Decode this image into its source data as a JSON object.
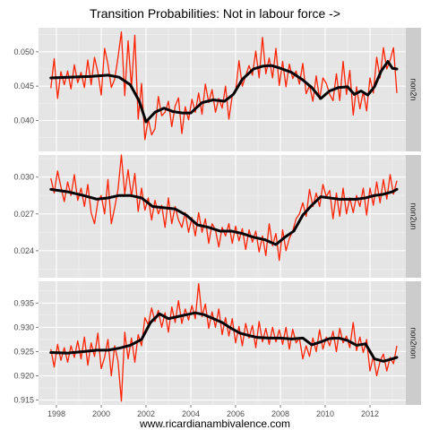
{
  "colors": {
    "panel_bg": "#e5e5e5",
    "grid_major": "#ffffff",
    "grid_minor": "#f2f2f2",
    "strip_bg": "#cccccc",
    "raw_series": "#ff2200",
    "smooth_series": "#000000"
  },
  "chart_data": {
    "type": "line",
    "title": "Transition Probabilities: Not in labour force ->",
    "xlabel": "www.ricardianambivalence.com",
    "ylabel": "",
    "x_range": [
      1997.2,
      2013.6
    ],
    "x_ticks": [
      1998,
      2000,
      2002,
      2004,
      2006,
      2008,
      2010,
      2012
    ],
    "x_tick_labels": [
      "1998",
      "2000",
      "2002",
      "2004",
      "2006",
      "2008",
      "2010",
      "2012"
    ],
    "grid": true,
    "legend": "none",
    "facets": [
      {
        "strip": "non2n",
        "ylim": [
          0.0355,
          0.0535
        ],
        "y_ticks": [
          0.04,
          0.045,
          0.05
        ],
        "y_tick_labels": [
          "0.040",
          "0.045",
          "0.050"
        ],
        "smooth": {
          "x": [
            1997.75,
            1998.5,
            1999.5,
            2000.3,
            2000.8,
            2001.3,
            2001.7,
            2002.0,
            2002.4,
            2002.8,
            2003.2,
            2003.6,
            2004.0,
            2004.5,
            2005.0,
            2005.5,
            2005.9,
            2006.3,
            2006.8,
            2007.2,
            2007.6,
            2008.0,
            2008.5,
            2009.0,
            2009.4,
            2009.8,
            2010.2,
            2010.6,
            2011.0,
            2011.3,
            2011.6,
            2011.9,
            2012.2,
            2012.5,
            2012.8,
            2013.0,
            2013.2
          ],
          "y": [
            0.0462,
            0.0463,
            0.0464,
            0.0466,
            0.0463,
            0.0452,
            0.0428,
            0.0398,
            0.0412,
            0.0418,
            0.0413,
            0.0411,
            0.0411,
            0.0426,
            0.043,
            0.0428,
            0.0438,
            0.046,
            0.0475,
            0.0479,
            0.048,
            0.0476,
            0.047,
            0.0459,
            0.0448,
            0.0432,
            0.0443,
            0.0448,
            0.0449,
            0.0438,
            0.0443,
            0.0437,
            0.0449,
            0.0472,
            0.0486,
            0.0476,
            0.0475
          ]
        },
        "raw": {
          "x": [
            1997.75,
            1997.9,
            1998.05,
            1998.2,
            1998.35,
            1998.5,
            1998.65,
            1998.8,
            1998.95,
            1999.1,
            1999.25,
            1999.4,
            1999.55,
            1999.7,
            1999.85,
            2000.0,
            2000.15,
            2000.3,
            2000.45,
            2000.6,
            2000.75,
            2000.9,
            2001.05,
            2001.2,
            2001.35,
            2001.5,
            2001.65,
            2001.8,
            2001.95,
            2002.1,
            2002.25,
            2002.4,
            2002.55,
            2002.7,
            2002.85,
            2003.0,
            2003.15,
            2003.3,
            2003.45,
            2003.6,
            2003.75,
            2003.9,
            2004.05,
            2004.2,
            2004.35,
            2004.5,
            2004.65,
            2004.8,
            2004.95,
            2005.1,
            2005.25,
            2005.4,
            2005.55,
            2005.7,
            2005.85,
            2006.0,
            2006.15,
            2006.3,
            2006.45,
            2006.6,
            2006.75,
            2006.9,
            2007.05,
            2007.2,
            2007.35,
            2007.5,
            2007.65,
            2007.8,
            2007.95,
            2008.1,
            2008.25,
            2008.4,
            2008.55,
            2008.7,
            2008.85,
            2009.0,
            2009.15,
            2009.3,
            2009.45,
            2009.6,
            2009.75,
            2009.9,
            2010.05,
            2010.2,
            2010.35,
            2010.5,
            2010.65,
            2010.8,
            2010.95,
            2011.1,
            2011.25,
            2011.4,
            2011.55,
            2011.7,
            2011.85,
            2012.0,
            2012.15,
            2012.3,
            2012.45,
            2012.6,
            2012.75,
            2012.9,
            2013.05,
            2013.2
          ],
          "y": [
            0.0447,
            0.049,
            0.0432,
            0.0471,
            0.0452,
            0.0472,
            0.0446,
            0.0481,
            0.0455,
            0.047,
            0.0448,
            0.0488,
            0.0452,
            0.0492,
            0.047,
            0.0437,
            0.0505,
            0.0482,
            0.0448,
            0.046,
            0.0492,
            0.0529,
            0.0436,
            0.0516,
            0.0448,
            0.0524,
            0.0402,
            0.0454,
            0.0372,
            0.0402,
            0.0379,
            0.0388,
            0.0435,
            0.0407,
            0.0412,
            0.0428,
            0.0391,
            0.0421,
            0.0433,
            0.0381,
            0.042,
            0.0401,
            0.0431,
            0.0412,
            0.044,
            0.0409,
            0.0453,
            0.0426,
            0.0445,
            0.0412,
            0.0432,
            0.0418,
            0.045,
            0.0402,
            0.0436,
            0.0442,
            0.0487,
            0.045,
            0.0465,
            0.048,
            0.0466,
            0.0501,
            0.0462,
            0.0521,
            0.0468,
            0.0491,
            0.0462,
            0.0505,
            0.0451,
            0.0486,
            0.0449,
            0.0482,
            0.0461,
            0.0472,
            0.0453,
            0.0483,
            0.0439,
            0.0451,
            0.0428,
            0.0465,
            0.0431,
            0.0462,
            0.0454,
            0.0438,
            0.0429,
            0.0468,
            0.0429,
            0.0486,
            0.0438,
            0.0473,
            0.0408,
            0.0449,
            0.0417,
            0.0442,
            0.0414,
            0.0462,
            0.044,
            0.0492,
            0.0462,
            0.0506,
            0.0475,
            0.0488,
            0.0506,
            0.044
          ]
        }
      },
      {
        "strip": "non2un",
        "ylim": [
          0.0218,
          0.0318
        ],
        "y_ticks": [
          0.024,
          0.027,
          0.03
        ],
        "y_tick_labels": [
          "0.024",
          "0.027",
          "0.030"
        ],
        "smooth": {
          "x": [
            1997.75,
            1998.5,
            1999.2,
            1999.8,
            2000.3,
            2000.8,
            2001.3,
            2001.8,
            2002.3,
            2002.8,
            2003.3,
            2003.8,
            2004.3,
            2004.8,
            2005.3,
            2005.8,
            2006.3,
            2006.8,
            2007.3,
            2007.8,
            2008.2,
            2008.6,
            2009.0,
            2009.4,
            2009.8,
            2010.2,
            2010.6,
            2011.0,
            2011.4,
            2011.8,
            2012.2,
            2012.6,
            2013.0,
            2013.2
          ],
          "y": [
            0.029,
            0.0288,
            0.0285,
            0.0282,
            0.0283,
            0.0285,
            0.0285,
            0.0283,
            0.0276,
            0.0275,
            0.0274,
            0.0269,
            0.0261,
            0.0259,
            0.0256,
            0.0256,
            0.0254,
            0.0251,
            0.0249,
            0.0245,
            0.0251,
            0.0256,
            0.0269,
            0.0277,
            0.0284,
            0.0283,
            0.0282,
            0.0282,
            0.0282,
            0.0283,
            0.0285,
            0.0286,
            0.0288,
            0.029
          ]
        },
        "raw": {
          "x": [
            1997.75,
            1997.9,
            1998.05,
            1998.2,
            1998.35,
            1998.5,
            1998.65,
            1998.8,
            1998.95,
            1999.1,
            1999.25,
            1999.4,
            1999.55,
            1999.7,
            1999.85,
            2000.0,
            2000.15,
            2000.3,
            2000.45,
            2000.6,
            2000.75,
            2000.9,
            2001.05,
            2001.2,
            2001.35,
            2001.5,
            2001.65,
            2001.8,
            2001.95,
            2002.1,
            2002.25,
            2002.4,
            2002.55,
            2002.7,
            2002.85,
            2003.0,
            2003.15,
            2003.3,
            2003.45,
            2003.6,
            2003.75,
            2003.9,
            2004.05,
            2004.2,
            2004.35,
            2004.5,
            2004.65,
            2004.8,
            2004.95,
            2005.1,
            2005.25,
            2005.4,
            2005.55,
            2005.7,
            2005.85,
            2006.0,
            2006.15,
            2006.3,
            2006.45,
            2006.6,
            2006.75,
            2006.9,
            2007.05,
            2007.2,
            2007.35,
            2007.5,
            2007.65,
            2007.8,
            2007.95,
            2008.1,
            2008.25,
            2008.4,
            2008.55,
            2008.7,
            2008.85,
            2009.0,
            2009.15,
            2009.3,
            2009.45,
            2009.6,
            2009.75,
            2009.9,
            2010.05,
            2010.2,
            2010.35,
            2010.5,
            2010.65,
            2010.8,
            2010.95,
            2011.1,
            2011.25,
            2011.4,
            2011.55,
            2011.7,
            2011.85,
            2012.0,
            2012.15,
            2012.3,
            2012.45,
            2012.6,
            2012.75,
            2012.9,
            2013.05,
            2013.2
          ],
          "y": [
            0.0299,
            0.0287,
            0.0305,
            0.0292,
            0.028,
            0.0296,
            0.0285,
            0.0302,
            0.0281,
            0.0291,
            0.0276,
            0.0294,
            0.0271,
            0.0262,
            0.028,
            0.0285,
            0.027,
            0.0298,
            0.0262,
            0.0275,
            0.029,
            0.0318,
            0.0286,
            0.0306,
            0.0284,
            0.0303,
            0.0272,
            0.0291,
            0.0273,
            0.0283,
            0.0265,
            0.0281,
            0.027,
            0.0277,
            0.0259,
            0.0283,
            0.0262,
            0.0276,
            0.0265,
            0.0259,
            0.0271,
            0.0255,
            0.0267,
            0.0252,
            0.0271,
            0.0255,
            0.0266,
            0.0246,
            0.0262,
            0.0257,
            0.0243,
            0.0259,
            0.0252,
            0.0262,
            0.0246,
            0.026,
            0.0248,
            0.0258,
            0.0241,
            0.0257,
            0.0247,
            0.0256,
            0.0239,
            0.0252,
            0.0236,
            0.0262,
            0.0244,
            0.0254,
            0.0232,
            0.0257,
            0.024,
            0.025,
            0.0256,
            0.0266,
            0.027,
            0.0279,
            0.0268,
            0.029,
            0.0276,
            0.0287,
            0.0276,
            0.0294,
            0.0284,
            0.0289,
            0.0266,
            0.0287,
            0.0268,
            0.0291,
            0.027,
            0.0283,
            0.0271,
            0.0285,
            0.0276,
            0.0291,
            0.0269,
            0.0291,
            0.0277,
            0.0296,
            0.0279,
            0.0298,
            0.0282,
            0.0302,
            0.0286,
            0.0297
          ]
        }
      },
      {
        "strip": "non2non",
        "ylim": [
          0.914,
          0.9395
        ],
        "y_ticks": [
          0.915,
          0.92,
          0.925,
          0.93,
          0.935
        ],
        "y_tick_labels": [
          "0.915",
          "0.920",
          "0.925",
          "0.930",
          "0.935"
        ],
        "smooth": {
          "x": [
            1997.75,
            1998.5,
            1999.2,
            1999.8,
            2000.3,
            2000.8,
            2001.3,
            2001.8,
            2002.2,
            2002.6,
            2003.0,
            2003.4,
            2003.8,
            2004.2,
            2004.6,
            2005.0,
            2005.4,
            2005.8,
            2006.2,
            2006.6,
            2007.0,
            2007.5,
            2008.0,
            2008.5,
            2009.0,
            2009.4,
            2009.8,
            2010.2,
            2010.6,
            2011.0,
            2011.4,
            2011.8,
            2012.2,
            2012.6,
            2013.0,
            2013.2
          ],
          "y": [
            0.9248,
            0.9247,
            0.925,
            0.9253,
            0.9253,
            0.9257,
            0.9263,
            0.9275,
            0.931,
            0.9328,
            0.9318,
            0.9322,
            0.9326,
            0.933,
            0.9326,
            0.9318,
            0.931,
            0.9298,
            0.9288,
            0.9283,
            0.9279,
            0.9278,
            0.9278,
            0.9276,
            0.9278,
            0.9264,
            0.927,
            0.9277,
            0.9278,
            0.9273,
            0.9263,
            0.9266,
            0.9235,
            0.923,
            0.9235,
            0.9238
          ]
        },
        "raw": {
          "x": [
            1997.75,
            1997.9,
            1998.05,
            1998.2,
            1998.35,
            1998.5,
            1998.65,
            1998.8,
            1998.95,
            1999.1,
            1999.25,
            1999.4,
            1999.55,
            1999.7,
            1999.85,
            2000.0,
            2000.15,
            2000.3,
            2000.45,
            2000.6,
            2000.75,
            2000.9,
            2001.05,
            2001.2,
            2001.35,
            2001.5,
            2001.65,
            2001.8,
            2001.95,
            2002.1,
            2002.25,
            2002.4,
            2002.55,
            2002.7,
            2002.85,
            2003.0,
            2003.15,
            2003.3,
            2003.45,
            2003.6,
            2003.75,
            2003.9,
            2004.05,
            2004.2,
            2004.35,
            2004.5,
            2004.65,
            2004.8,
            2004.95,
            2005.1,
            2005.25,
            2005.4,
            2005.55,
            2005.7,
            2005.85,
            2006.0,
            2006.15,
            2006.3,
            2006.45,
            2006.6,
            2006.75,
            2006.9,
            2007.05,
            2007.2,
            2007.35,
            2007.5,
            2007.65,
            2007.8,
            2007.95,
            2008.1,
            2008.25,
            2008.4,
            2008.55,
            2008.7,
            2008.85,
            2009.0,
            2009.15,
            2009.3,
            2009.45,
            2009.6,
            2009.75,
            2009.9,
            2010.05,
            2010.2,
            2010.35,
            2010.5,
            2010.65,
            2010.8,
            2010.95,
            2011.1,
            2011.25,
            2011.4,
            2011.55,
            2011.7,
            2011.85,
            2012.0,
            2012.15,
            2012.3,
            2012.45,
            2012.6,
            2012.75,
            2012.9,
            2013.05,
            2013.2
          ],
          "y": [
            0.9255,
            0.9218,
            0.9265,
            0.9232,
            0.9258,
            0.9228,
            0.9262,
            0.9238,
            0.9272,
            0.9235,
            0.928,
            0.9222,
            0.9268,
            0.924,
            0.9288,
            0.9215,
            0.9238,
            0.9275,
            0.92,
            0.9262,
            0.923,
            0.9148,
            0.929,
            0.9235,
            0.9278,
            0.9228,
            0.9285,
            0.9262,
            0.932,
            0.9305,
            0.934,
            0.9312,
            0.9335,
            0.93,
            0.933,
            0.929,
            0.9342,
            0.931,
            0.9355,
            0.9308,
            0.9338,
            0.9315,
            0.9345,
            0.9318,
            0.939,
            0.9322,
            0.9348,
            0.9298,
            0.9332,
            0.93,
            0.9338,
            0.9285,
            0.932,
            0.9282,
            0.9318,
            0.9268,
            0.9302,
            0.9262,
            0.9308,
            0.9278,
            0.9304,
            0.9258,
            0.9312,
            0.927,
            0.9298,
            0.9265,
            0.93,
            0.927,
            0.9295,
            0.9265,
            0.93,
            0.9255,
            0.9296,
            0.9268,
            0.9278,
            0.9235,
            0.9262,
            0.924,
            0.9278,
            0.925,
            0.9295,
            0.9255,
            0.928,
            0.9262,
            0.9292,
            0.925,
            0.9298,
            0.9268,
            0.9282,
            0.9258,
            0.931,
            0.9252,
            0.928,
            0.9248,
            0.9275,
            0.921,
            0.924,
            0.92,
            0.923,
            0.9245,
            0.921,
            0.9238,
            0.9225,
            0.9262
          ]
        }
      }
    ]
  }
}
